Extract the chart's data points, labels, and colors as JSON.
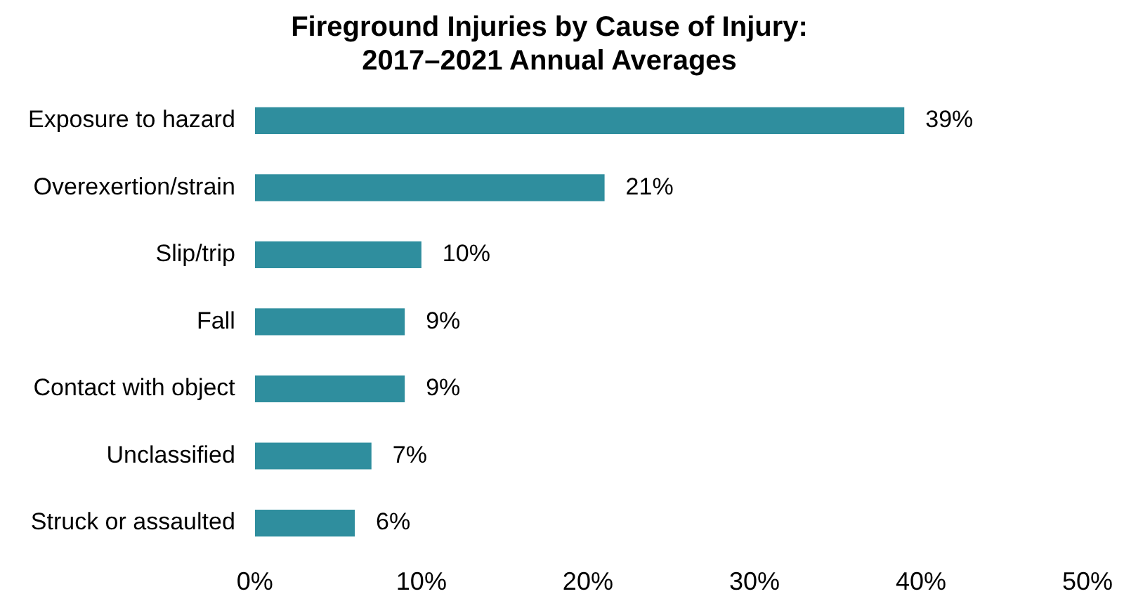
{
  "chart_data": {
    "type": "bar",
    "orientation": "horizontal",
    "title": "Fireground Injuries by Cause of Injury:\n2017–2021 Annual Averages",
    "categories": [
      "Exposure to hazard",
      "Overexertion/strain",
      "Slip/trip",
      "Fall",
      "Contact with object",
      "Unclassified",
      "Struck or assaulted"
    ],
    "values": [
      39,
      21,
      10,
      9,
      9,
      7,
      6
    ],
    "value_labels": [
      "39%",
      "21%",
      "10%",
      "9%",
      "9%",
      "7%",
      "6%"
    ],
    "color": "#2f8e9e",
    "xlim": [
      0,
      50
    ],
    "xticks": [
      {
        "value": 0,
        "label": "0%"
      },
      {
        "value": 10,
        "label": "10%"
      },
      {
        "value": 20,
        "label": "20%"
      },
      {
        "value": 30,
        "label": "30%"
      },
      {
        "value": 40,
        "label": "40%"
      },
      {
        "value": 50,
        "label": "50%"
      }
    ],
    "grid": false,
    "legend": false
  }
}
